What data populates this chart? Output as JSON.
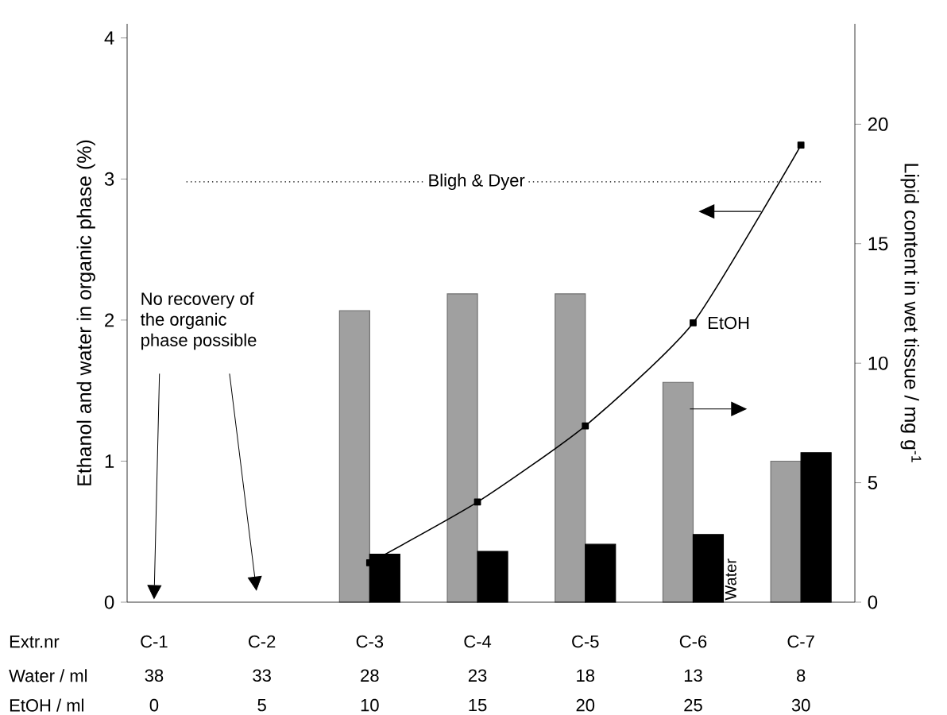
{
  "chart_data": {
    "type": "bar",
    "categories": [
      "C-1",
      "C-2",
      "C-3",
      "C-4",
      "C-5",
      "C-6",
      "C-7"
    ],
    "ylabel": "Ethanol and water in organic phase (%)",
    "y2label": "Lipid content in wet tissue / mg g$^{-1}$",
    "series": [
      {
        "color": "#a0a0a0",
        "axis": "y2",
        "values": [
          null,
          null,
          12.2,
          12.9,
          12.9,
          9.2,
          5.9
        ]
      },
      {
        "name": "Water",
        "color": "#000000",
        "values": [
          null,
          null,
          0.34,
          0.36,
          0.41,
          0.48,
          1.06
        ]
      },
      {
        "name": "EtOH",
        "type": "line",
        "color": "#000000",
        "values": [
          null,
          null,
          0.28,
          0.71,
          1.25,
          1.98,
          3.24
        ]
      }
    ],
    "marker": "square",
    "line_style": "solid",
    "ylim": [
      0,
      4.1
    ],
    "yticks": [
      0,
      1,
      2,
      3,
      4
    ],
    "y2lim": [
      0,
      24.2
    ],
    "y2ticks": [
      0,
      5,
      10,
      15,
      20
    ],
    "ref_lines": [
      {
        "axis": "y",
        "value": 2.98,
        "label": "Bligh & Dyer",
        "line_style": "dotted",
        "color": "#000000"
      }
    ],
    "annotations": [
      "No recovery of the organic phase possible",
      "Extr.nr",
      "Water / ml",
      "EtOH / ml",
      "38",
      "33",
      "28",
      "23",
      "18",
      "13",
      "8",
      "0",
      "5",
      "10",
      "15",
      "20",
      "25",
      "30"
    ],
    "grid": false
  }
}
